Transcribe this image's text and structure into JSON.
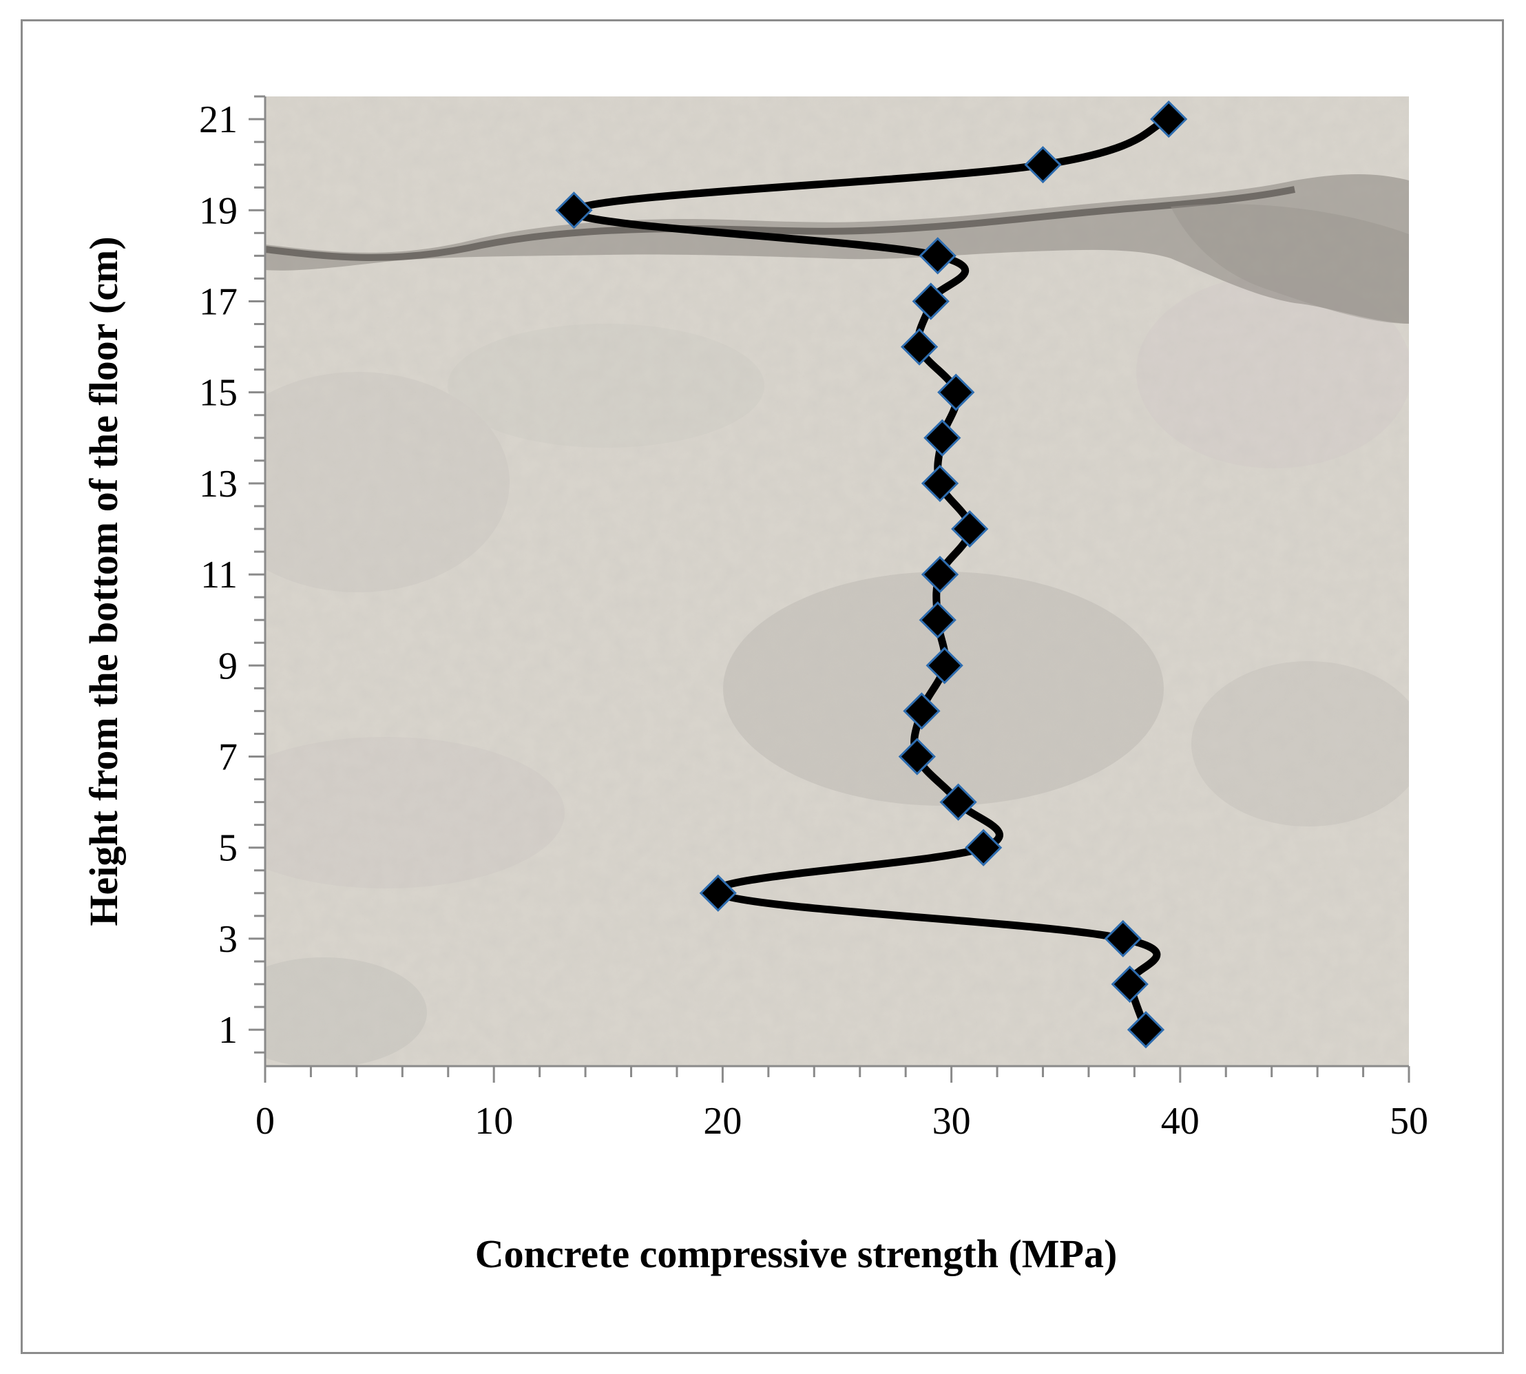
{
  "chart_data": {
    "type": "line",
    "xlabel": "Concrete compressive strength (MPa)",
    "ylabel": "Height from the bottom of the floor (cm)",
    "xlim": [
      0,
      50
    ],
    "ylim": [
      0.2,
      21.5
    ],
    "x_ticks": [
      0,
      10,
      20,
      30,
      40,
      50
    ],
    "y_ticks": [
      1,
      3,
      5,
      7,
      9,
      11,
      13,
      15,
      17,
      19,
      21
    ],
    "grid": false,
    "legend": "none",
    "background": "photograph of cracked concrete core section",
    "marker": "diamond",
    "line_color": "#000000",
    "marker_fill": "#000000",
    "marker_edge": "#2e6db0",
    "series": [
      {
        "points": [
          {
            "y": 1,
            "x": 38.5
          },
          {
            "y": 2,
            "x": 37.8
          },
          {
            "y": 3,
            "x": 37.5
          },
          {
            "y": 4,
            "x": 19.8
          },
          {
            "y": 5,
            "x": 31.4
          },
          {
            "y": 6,
            "x": 30.3
          },
          {
            "y": 7,
            "x": 28.5
          },
          {
            "y": 8,
            "x": 28.7
          },
          {
            "y": 9,
            "x": 29.7
          },
          {
            "y": 10,
            "x": 29.4
          },
          {
            "y": 11,
            "x": 29.5
          },
          {
            "y": 12,
            "x": 30.8
          },
          {
            "y": 13,
            "x": 29.5
          },
          {
            "y": 14,
            "x": 29.6
          },
          {
            "y": 15,
            "x": 30.2
          },
          {
            "y": 16,
            "x": 28.6
          },
          {
            "y": 17,
            "x": 29.1
          },
          {
            "y": 18,
            "x": 29.4
          },
          {
            "y": 19,
            "x": 13.5
          },
          {
            "y": 20,
            "x": 34.0
          },
          {
            "y": 21,
            "x": 39.5
          }
        ]
      }
    ]
  }
}
